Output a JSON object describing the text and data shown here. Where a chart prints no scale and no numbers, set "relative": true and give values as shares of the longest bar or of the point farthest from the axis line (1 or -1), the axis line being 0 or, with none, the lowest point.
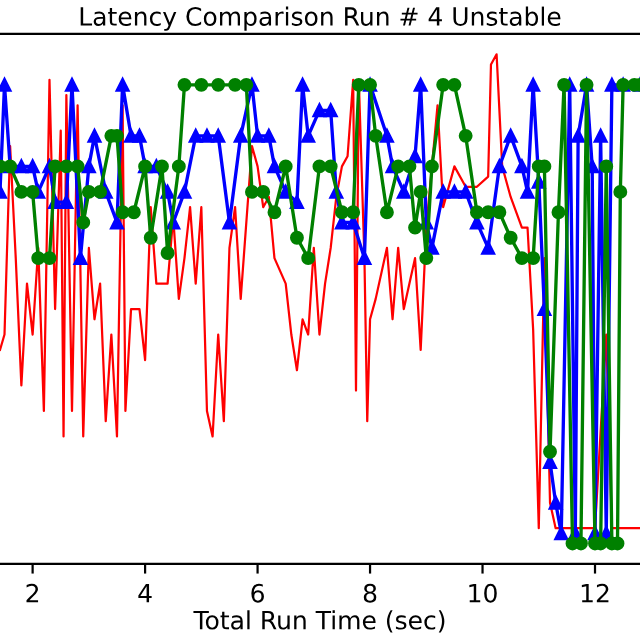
{
  "chart_data": {
    "type": "line",
    "title": "Latency Comparison Run # 4 Unstable",
    "xlabel": "Total Run Time (sec)",
    "relative": true,
    "xlim": [
      1.42,
      12.8
    ],
    "xticks": [
      2,
      4,
      6,
      8,
      10,
      12
    ],
    "grid": false,
    "line_style": "solid",
    "series": [
      {
        "color": "#ff0000",
        "marker": "none",
        "x": [
          1.42,
          1.5,
          1.6,
          1.7,
          1.8,
          1.9,
          2.0,
          2.1,
          2.2,
          2.3,
          2.4,
          2.5,
          2.55,
          2.6,
          2.7,
          2.8,
          2.9,
          3.0,
          3.1,
          3.2,
          3.3,
          3.4,
          3.5,
          3.6,
          3.65,
          3.75,
          3.9,
          4.0,
          4.1,
          4.2,
          4.4,
          4.5,
          4.6,
          4.7,
          4.8,
          4.9,
          5.0,
          5.1,
          5.2,
          5.3,
          5.4,
          5.5,
          5.6,
          5.7,
          5.9,
          6.0,
          6.1,
          6.2,
          6.3,
          6.5,
          6.6,
          6.7,
          6.8,
          6.9,
          7.0,
          7.1,
          7.2,
          7.3,
          7.4,
          7.5,
          7.6,
          7.7,
          7.75,
          7.8,
          7.9,
          7.95,
          8.0,
          8.1,
          8.3,
          8.4,
          8.5,
          8.6,
          8.7,
          8.8,
          8.9,
          9.0,
          9.2,
          9.3,
          9.5,
          9.7,
          9.9,
          10.1,
          10.15,
          10.25,
          10.35,
          10.5,
          10.7,
          10.8,
          10.9,
          11.0,
          11.1,
          11.2,
          11.3,
          11.5,
          11.7,
          12.0,
          12.2,
          12.3,
          12.5,
          12.7,
          12.8
        ],
        "values": [
          0.42,
          0.45,
          0.82,
          0.6,
          0.35,
          0.55,
          0.45,
          0.62,
          0.3,
          0.95,
          0.5,
          0.85,
          0.25,
          0.92,
          0.3,
          0.9,
          0.25,
          0.62,
          0.48,
          0.55,
          0.28,
          0.45,
          0.25,
          0.9,
          0.3,
          0.5,
          0.5,
          0.4,
          0.7,
          0.55,
          0.55,
          0.68,
          0.52,
          0.6,
          0.7,
          0.55,
          0.7,
          0.3,
          0.25,
          0.45,
          0.28,
          0.62,
          0.7,
          0.52,
          0.82,
          0.78,
          0.7,
          0.72,
          0.6,
          0.55,
          0.45,
          0.38,
          0.48,
          0.45,
          0.62,
          0.45,
          0.55,
          0.62,
          0.72,
          0.78,
          0.8,
          0.95,
          0.34,
          0.95,
          0.6,
          0.28,
          0.48,
          0.52,
          0.62,
          0.48,
          0.62,
          0.5,
          0.55,
          0.6,
          0.42,
          0.66,
          0.9,
          0.7,
          0.78,
          0.74,
          0.74,
          0.76,
          0.98,
          1.0,
          0.78,
          0.72,
          0.66,
          0.66,
          0.46,
          0.07,
          0.6,
          0.12,
          0.07,
          0.07,
          0.07,
          0.07,
          0.45,
          0.07,
          0.07,
          0.07,
          0.07
        ]
      },
      {
        "color": "#0000ff",
        "marker": "triangle",
        "x": [
          1.42,
          1.5,
          1.6,
          1.8,
          2.0,
          2.1,
          2.3,
          2.4,
          2.6,
          2.7,
          2.85,
          3.0,
          3.1,
          3.3,
          3.5,
          3.6,
          3.75,
          3.9,
          4.0,
          4.2,
          4.4,
          4.5,
          4.7,
          4.9,
          5.1,
          5.3,
          5.5,
          5.7,
          5.9,
          6.0,
          6.2,
          6.3,
          6.5,
          6.7,
          6.8,
          6.9,
          7.1,
          7.3,
          7.4,
          7.5,
          7.7,
          7.9,
          8.0,
          8.3,
          8.4,
          8.6,
          8.8,
          8.9,
          9.0,
          9.1,
          9.3,
          9.5,
          9.7,
          9.9,
          10.1,
          10.3,
          10.5,
          10.7,
          10.8,
          10.9,
          11.0,
          11.1,
          11.2,
          11.3,
          11.4,
          11.55,
          11.65,
          11.7,
          11.85,
          11.95,
          12.0,
          12.1,
          12.2,
          12.3,
          12.5,
          12.8
        ],
        "values": [
          0.73,
          0.94,
          0.78,
          0.78,
          0.78,
          0.73,
          0.78,
          0.71,
          0.71,
          0.94,
          0.6,
          0.78,
          0.84,
          0.73,
          0.67,
          0.94,
          0.84,
          0.84,
          0.78,
          0.78,
          0.73,
          0.67,
          0.73,
          0.84,
          0.84,
          0.84,
          0.67,
          0.84,
          0.94,
          0.84,
          0.84,
          0.78,
          0.73,
          0.71,
          0.94,
          0.84,
          0.89,
          0.89,
          0.73,
          0.67,
          0.67,
          0.6,
          0.94,
          0.84,
          0.78,
          0.73,
          0.8,
          0.94,
          0.67,
          0.62,
          0.73,
          0.73,
          0.73,
          0.67,
          0.62,
          0.78,
          0.84,
          0.78,
          0.73,
          0.94,
          0.75,
          0.5,
          0.2,
          0.12,
          0.06,
          0.94,
          0.06,
          0.84,
          0.94,
          0.78,
          0.06,
          0.84,
          0.06,
          0.94,
          0.94,
          0.94
        ]
      },
      {
        "color": "#008000",
        "marker": "circle",
        "x": [
          1.42,
          1.6,
          1.8,
          2.0,
          2.1,
          2.3,
          2.4,
          2.6,
          2.8,
          2.9,
          3.0,
          3.2,
          3.4,
          3.5,
          3.6,
          3.8,
          4.0,
          4.1,
          4.3,
          4.4,
          4.6,
          4.7,
          5.0,
          5.3,
          5.6,
          5.8,
          5.9,
          6.1,
          6.3,
          6.5,
          6.7,
          6.9,
          7.1,
          7.3,
          7.5,
          7.7,
          7.8,
          8.0,
          8.1,
          8.3,
          8.5,
          8.7,
          8.8,
          8.9,
          9.0,
          9.1,
          9.3,
          9.5,
          9.7,
          9.9,
          10.1,
          10.3,
          10.5,
          10.7,
          10.9,
          11.0,
          11.1,
          11.2,
          11.35,
          11.45,
          11.6,
          11.75,
          11.85,
          12.0,
          12.1,
          12.2,
          12.3,
          12.4,
          12.45,
          12.5,
          12.7,
          12.8
        ],
        "values": [
          0.78,
          0.78,
          0.73,
          0.73,
          0.6,
          0.6,
          0.78,
          0.78,
          0.78,
          0.67,
          0.73,
          0.73,
          0.84,
          0.84,
          0.69,
          0.69,
          0.78,
          0.64,
          0.78,
          0.61,
          0.78,
          0.94,
          0.94,
          0.94,
          0.94,
          0.94,
          0.73,
          0.73,
          0.69,
          0.78,
          0.64,
          0.6,
          0.78,
          0.78,
          0.69,
          0.69,
          0.94,
          0.94,
          0.84,
          0.69,
          0.78,
          0.78,
          0.66,
          0.73,
          0.6,
          0.78,
          0.94,
          0.94,
          0.84,
          0.69,
          0.69,
          0.69,
          0.64,
          0.6,
          0.6,
          0.78,
          0.78,
          0.22,
          0.69,
          0.94,
          0.04,
          0.04,
          0.94,
          0.04,
          0.04,
          0.78,
          0.04,
          0.04,
          0.73,
          0.94,
          0.94,
          0.94
        ]
      }
    ]
  }
}
